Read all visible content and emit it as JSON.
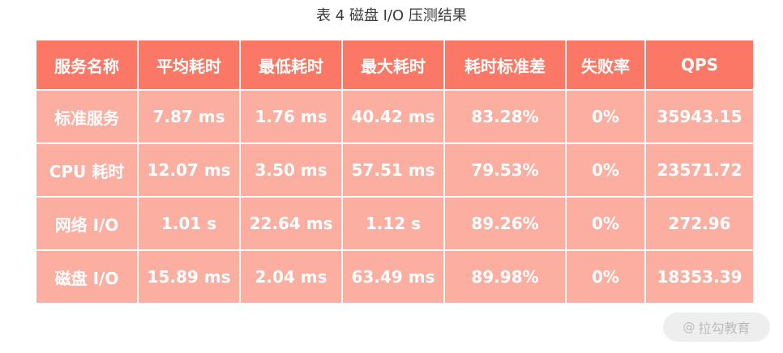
{
  "caption": "表 4 磁盘 I/O 压测结果",
  "table": {
    "headers": [
      "服务名称",
      "平均耗时",
      "最低耗时",
      "最大耗时",
      "耗时标准差",
      "失败率",
      "QPS"
    ],
    "rows": [
      [
        "标准服务",
        "7.87 ms",
        "1.76 ms",
        "40.42 ms",
        "83.28%",
        "0%",
        "35943.15"
      ],
      [
        "CPU 耗时",
        "12.07 ms",
        "3.50 ms",
        "57.51 ms",
        "79.53%",
        "0%",
        "23571.72"
      ],
      [
        "网络 I/O",
        "1.01 s",
        "22.64 ms",
        "1.12 s",
        "89.26%",
        "0%",
        "272.96"
      ],
      [
        "磁盘 I/O",
        "15.89 ms",
        "2.04 ms",
        "63.49 ms",
        "89.98%",
        "0%",
        "18353.39"
      ]
    ]
  },
  "watermark": {
    "symbol": "@",
    "text": "拉勾教育"
  },
  "colors": {
    "header_bg": "#fa7865",
    "cell_bg": "#fcaea1",
    "text": "#ffffff"
  }
}
